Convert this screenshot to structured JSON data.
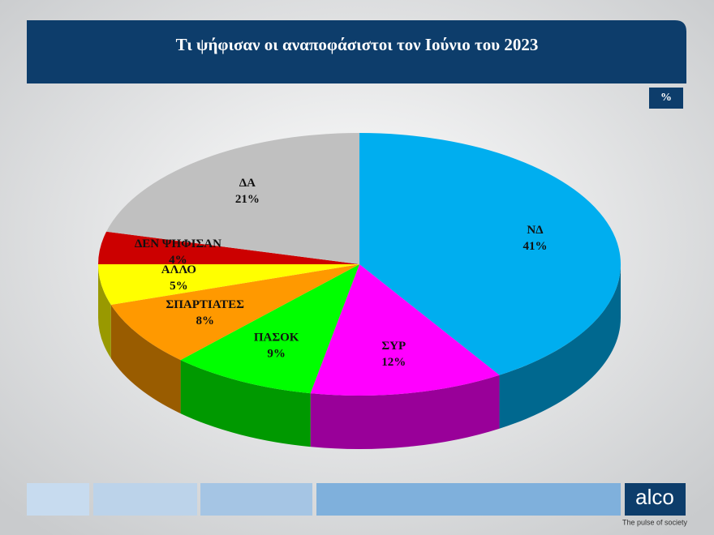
{
  "chart_data": {
    "type": "pie3d",
    "title": "Τι ψήφισαν οι αναποφάσιστοι τον Ιούνιο του 2023",
    "unit_badge": "%",
    "categories": [
      "ΝΔ",
      "ΣΥΡ",
      "ΠΑΣΟΚ",
      "ΣΠΑΡΤΙΑΤΕΣ",
      "ΑΛΛΟ",
      "ΔΕΝ ΨΗΦΙΣΑΝ",
      "ΔΑ"
    ],
    "values": [
      41,
      12,
      9,
      8,
      5,
      4,
      21
    ],
    "value_labels": [
      "41%",
      "12%",
      "9%",
      "8%",
      "5%",
      "4%",
      "21%"
    ],
    "colors": [
      "#00aeef",
      "#ff00ff",
      "#00ff00",
      "#ff9900",
      "#ffff00",
      "#cc0000",
      "#c0c0c0"
    ]
  },
  "logo": {
    "name": "alco",
    "tagline": "The pulse of society"
  }
}
